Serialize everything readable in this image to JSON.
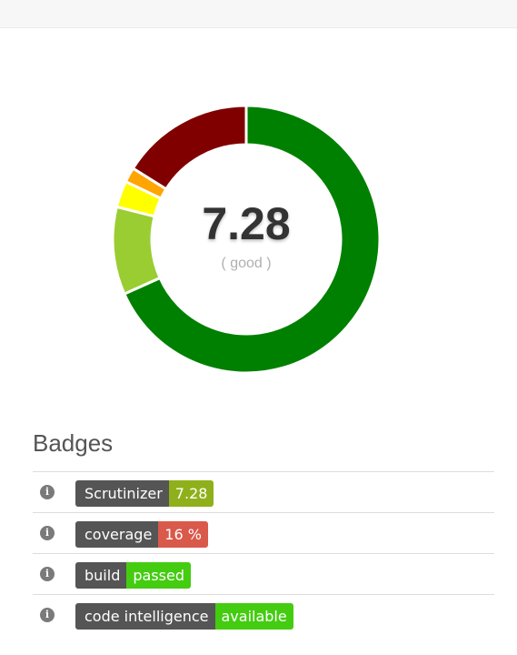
{
  "score": {
    "value": "7.28",
    "rating": "( good )"
  },
  "chart_data": {
    "type": "pie",
    "values": [
      68.3,
      10.6,
      3.2,
      1.8,
      16.1
    ],
    "colors": [
      "#008000",
      "#9acd32",
      "#ffff00",
      "#ffa500",
      "#800000"
    ]
  },
  "badges": {
    "heading": "Badges",
    "rows": [
      {
        "label": "Scrutinizer",
        "value": "7.28",
        "color": "#8fb01a",
        "icon": "info-icon"
      },
      {
        "label": "coverage",
        "value": "16 %",
        "color": "#d9594b",
        "icon": "info-icon"
      },
      {
        "label": "build",
        "value": "passed",
        "color": "#44cc11",
        "icon": "info-icon"
      },
      {
        "label": "code intelligence",
        "value": "available",
        "color": "#44cc11",
        "icon": "info-icon"
      }
    ]
  }
}
